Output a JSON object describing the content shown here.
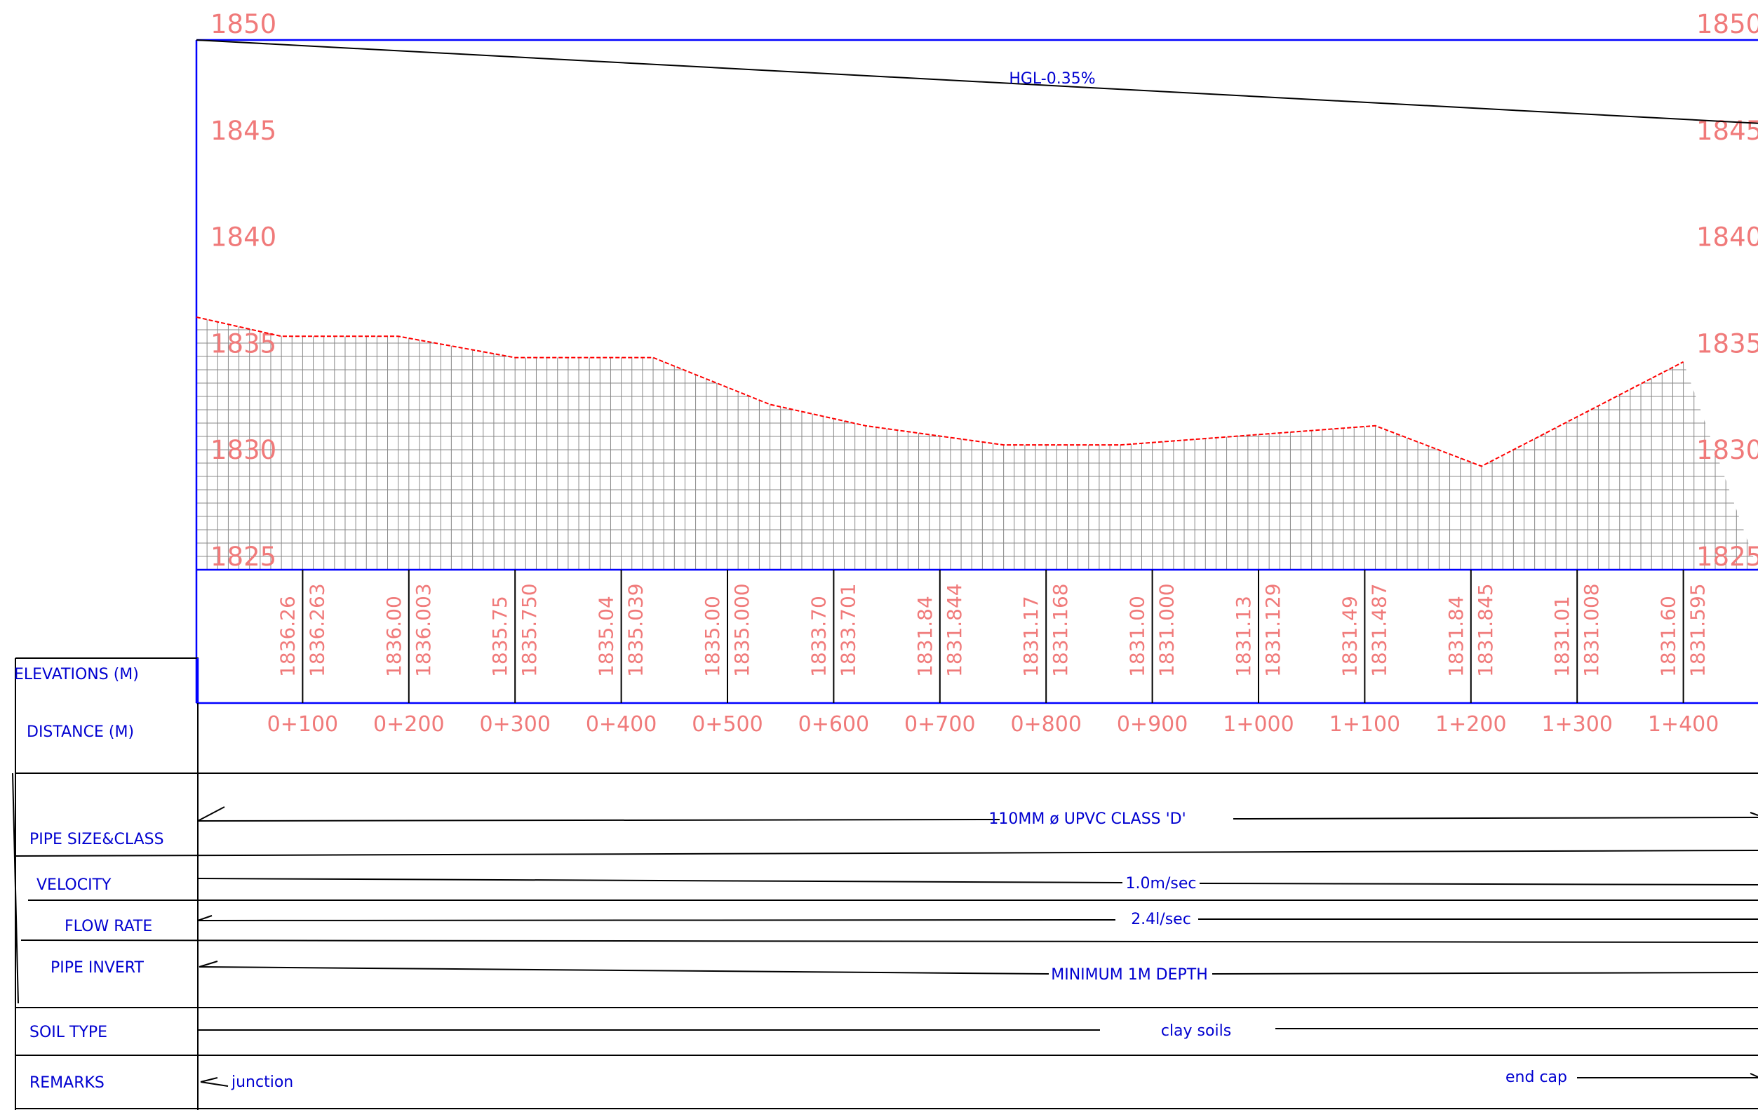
{
  "chart_data": {
    "type": "line",
    "y_ticks": [
      "1850",
      "1845",
      "1840",
      "1835",
      "1830",
      "1825"
    ],
    "y_range": [
      1825,
      1850
    ],
    "x_range": [
      0,
      1400
    ],
    "ground_profile": [
      {
        "x": 0,
        "y": 1836.2
      },
      {
        "x": 80,
        "y": 1835.3
      },
      {
        "x": 190,
        "y": 1835.3
      },
      {
        "x": 300,
        "y": 1834.3
      },
      {
        "x": 430,
        "y": 1834.3
      },
      {
        "x": 540,
        "y": 1832.1
      },
      {
        "x": 630,
        "y": 1831.1
      },
      {
        "x": 760,
        "y": 1830.2
      },
      {
        "x": 870,
        "y": 1830.2
      },
      {
        "x": 1110,
        "y": 1831.1
      },
      {
        "x": 1210,
        "y": 1829.2
      },
      {
        "x": 1400,
        "y": 1834.1
      }
    ],
    "hgl": {
      "label": "HGL-0.35%",
      "start": 1850,
      "end": 1845.3
    },
    "stations": [
      {
        "distance": "0+100",
        "x": 100,
        "ground": "1836.26",
        "invert": "1836.263"
      },
      {
        "distance": "0+200",
        "x": 200,
        "ground": "1836.00",
        "invert": "1836.003"
      },
      {
        "distance": "0+300",
        "x": 300,
        "ground": "1835.75",
        "invert": "1835.750"
      },
      {
        "distance": "0+400",
        "x": 400,
        "ground": "1835.04",
        "invert": "1835.039"
      },
      {
        "distance": "0+500",
        "x": 500,
        "ground": "1835.00",
        "invert": "1835.000"
      },
      {
        "distance": "0+600",
        "x": 600,
        "ground": "1833.70",
        "invert": "1833.701"
      },
      {
        "distance": "0+700",
        "x": 700,
        "ground": "1831.84",
        "invert": "1831.844"
      },
      {
        "distance": "0+800",
        "x": 800,
        "ground": "1831.17",
        "invert": "1831.168"
      },
      {
        "distance": "0+900",
        "x": 900,
        "ground": "1831.00",
        "invert": "1831.000"
      },
      {
        "distance": "1+000",
        "x": 1000,
        "ground": "1831.13",
        "invert": "1831.129"
      },
      {
        "distance": "1+100",
        "x": 1100,
        "ground": "1831.49",
        "invert": "1831.487"
      },
      {
        "distance": "1+200",
        "x": 1200,
        "ground": "1831.84",
        "invert": "1831.845"
      },
      {
        "distance": "1+300",
        "x": 1300,
        "ground": "1831.01",
        "invert": "1831.008"
      },
      {
        "distance": "1+400",
        "x": 1400,
        "ground": "1831.60",
        "invert": "1831.595"
      }
    ]
  },
  "table": {
    "elevations_label": "ELEVATIONS (M)",
    "distance_label": "DISTANCE (M)",
    "pipe_size_label": "PIPE SIZE&CLASS",
    "pipe_size_value": "110MM ø UPVC CLASS 'D'",
    "velocity_label": "VELOCITY",
    "velocity_value": "1.0m/sec",
    "flow_rate_label": "FLOW RATE",
    "flow_rate_value": "2.4l/sec",
    "pipe_invert_label": "PIPE INVERT",
    "pipe_invert_value": "MINIMUM 1M DEPTH",
    "soil_type_label": "SOIL TYPE",
    "soil_type_value": "clay soils",
    "remarks_label": "REMARKS",
    "remarks_start": "junction",
    "remarks_end": "end cap"
  },
  "colors": {
    "frame": "#0000ff",
    "ground_line": "#ff0000",
    "hatch": "#888888",
    "axis_text": "#f07a7a",
    "label_text": "#0000d0",
    "lines": "#000000"
  }
}
